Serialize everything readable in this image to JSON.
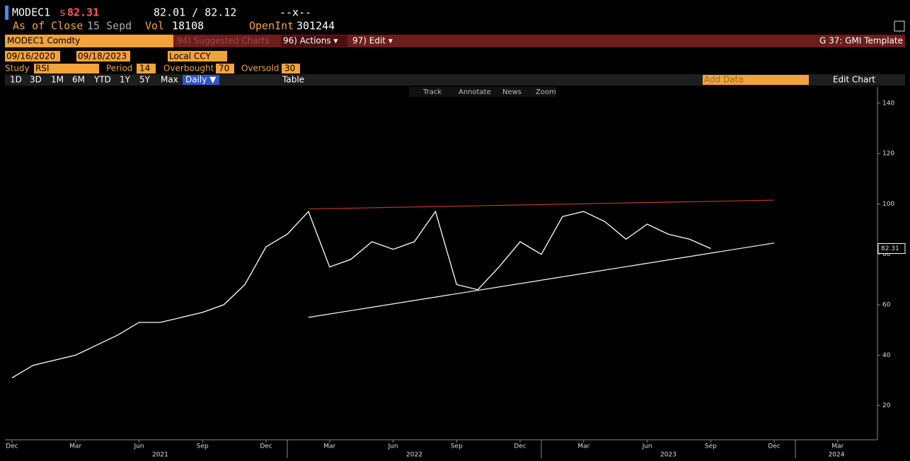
{
  "header": {
    "ticker": "MODEC1",
    "price_prefix": "s",
    "price": "82.31",
    "bid_ask": "82.01 / 82.12",
    "change": "--x--",
    "as_of": "As of Close",
    "date": "15 Sepd",
    "vol_label": "Vol",
    "vol": "18108",
    "oi_label": "OpenInt",
    "oi": "301244"
  },
  "toolbar": {
    "security": "MODEC1 Comdty",
    "suggested": "94) Suggested Charts",
    "actions": "96) Actions ▾",
    "edit": "97) Edit ▾",
    "template": "G 37: GMI Template"
  },
  "range": {
    "start": "09/16/2020",
    "end": "09/18/2023",
    "currency": "Local CCY"
  },
  "study": {
    "label": "Study",
    "name": "RSI",
    "period_label": "Period",
    "period": "14",
    "ob_label": "Overbought",
    "ob": "70",
    "os_label": "Oversold",
    "os": "30"
  },
  "periods": [
    "1D",
    "3D",
    "1M",
    "6M",
    "YTD",
    "1Y",
    "5Y",
    "Max"
  ],
  "frequency": "Daily ▼",
  "table": "Table",
  "add_data": "Add Data",
  "edit_chart": "Edit Chart",
  "chart_tools": [
    "Track",
    "Annotate",
    "News",
    "Zoom"
  ],
  "chart_data": {
    "type": "line",
    "x": [
      "2020-12",
      "2021-01",
      "2021-02",
      "2021-03",
      "2021-04",
      "2021-05",
      "2021-06",
      "2021-07",
      "2021-08",
      "2021-09",
      "2021-10",
      "2021-11",
      "2021-12",
      "2022-01",
      "2022-02",
      "2022-03",
      "2022-04",
      "2022-05",
      "2022-06",
      "2022-07",
      "2022-08",
      "2022-09",
      "2022-10",
      "2022-11",
      "2022-12",
      "2023-01",
      "2023-02",
      "2023-03",
      "2023-04",
      "2023-05",
      "2023-06",
      "2023-07",
      "2023-08",
      "2023-09"
    ],
    "values": [
      31,
      36,
      38,
      40,
      44,
      48,
      53,
      53,
      55,
      57,
      60,
      68,
      83,
      88,
      97,
      75,
      78,
      85,
      82,
      85,
      97,
      68,
      66,
      75,
      85,
      80,
      95,
      97,
      93,
      86,
      92,
      88,
      86,
      82.31
    ],
    "color": "#ffffff",
    "trendlines": [
      {
        "color": "#c0392b",
        "x": [
          "2022-02",
          "2023-12"
        ],
        "values": [
          98,
          101.5
        ]
      },
      {
        "color": "#ffffff",
        "x": [
          "2022-02",
          "2023-12"
        ],
        "values": [
          55,
          84.5
        ]
      }
    ],
    "ylim": [
      7,
      145
    ],
    "yticks": [
      20,
      40,
      60,
      80,
      100,
      120,
      140
    ],
    "xticks": [
      {
        "value": "2020-12",
        "label": "Dec"
      },
      {
        "value": "2021-03",
        "label": "Mar"
      },
      {
        "value": "2021-06",
        "label": "Jun"
      },
      {
        "value": "2021-09",
        "label": "Sep"
      },
      {
        "value": "2021-12",
        "label": "Dec"
      },
      {
        "value": "2022-03",
        "label": "Mar"
      },
      {
        "value": "2022-06",
        "label": "Jun"
      },
      {
        "value": "2022-09",
        "label": "Sep"
      },
      {
        "value": "2022-12",
        "label": "Dec"
      },
      {
        "value": "2023-03",
        "label": "Mar"
      },
      {
        "value": "2023-06",
        "label": "Jun"
      },
      {
        "value": "2023-09",
        "label": "Sep"
      },
      {
        "value": "2023-12",
        "label": "Dec"
      },
      {
        "value": "2024-03",
        "label": "Mar"
      }
    ],
    "years": [
      "2021",
      "2022",
      "2023",
      "2024"
    ]
  }
}
